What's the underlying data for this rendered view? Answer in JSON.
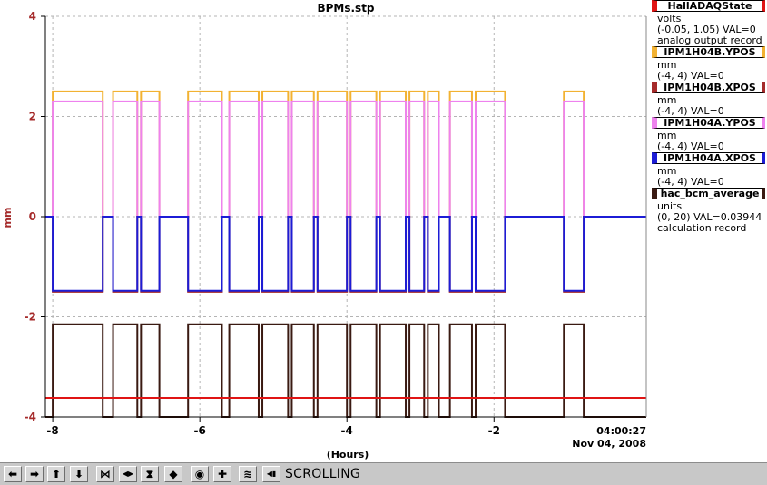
{
  "window": {
    "title": "BPMs.stp"
  },
  "chart_data": {
    "type": "line",
    "title": "BPMs.stp",
    "xlabel": "(Hours)",
    "ylabel": "mm",
    "xlim": [
      -8.1,
      0.07
    ],
    "ylim": [
      -4,
      4
    ],
    "x_ticks": [
      -8,
      -6,
      -4,
      -2
    ],
    "x_tick_labels": [
      "-8",
      "-6",
      "-4",
      "-2"
    ],
    "y_ticks": [
      -4,
      -2,
      0,
      2,
      4
    ],
    "y_tick_labels": [
      "-4",
      "-2",
      "0",
      "2",
      "4"
    ],
    "timestamp": [
      "04:00:27",
      "Nov 04, 2008"
    ],
    "grid": true,
    "legend_position": "right",
    "on_segments": [
      [
        -8.0,
        -7.32
      ],
      [
        -7.18,
        -6.85
      ],
      [
        -6.8,
        -6.55
      ],
      [
        -6.16,
        -5.7
      ],
      [
        -5.6,
        -5.2
      ],
      [
        -5.15,
        -4.8
      ],
      [
        -4.75,
        -4.45
      ],
      [
        -4.4,
        -4.0
      ],
      [
        -3.95,
        -3.6
      ],
      [
        -3.55,
        -3.2
      ],
      [
        -3.15,
        -2.95
      ],
      [
        -2.9,
        -2.75
      ],
      [
        -2.6,
        -2.3
      ],
      [
        -2.25,
        -1.85
      ],
      [
        -1.05,
        -0.78
      ]
    ],
    "series": [
      {
        "name": "IPM1H04B.YPOS",
        "color": "#f2b232",
        "on": 2.5,
        "off": 0
      },
      {
        "name": "IPM1H04A.YPOS",
        "color": "#ee82ee",
        "on": 2.3,
        "off": 0
      },
      {
        "name": "IPM1H04B.XPOS",
        "color": "#a52a2a",
        "on": -1.5,
        "off": 0
      },
      {
        "name": "IPM1H04A.XPOS",
        "color": "#1c1cd6",
        "on": -1.48,
        "off": 0
      },
      {
        "name": "hac_bcm_average",
        "color": "#3a1a12",
        "on": -2.15,
        "off": -4
      },
      {
        "name": "HallADAQState",
        "color": "#e01414",
        "constant": -3.62
      }
    ]
  },
  "legend": [
    {
      "name": "HallADAQState",
      "color": "#e01414",
      "lines": [
        "volts",
        "(-0.05, 1.05) VAL=0",
        "analog output record"
      ]
    },
    {
      "name": "IPM1H04B.YPOS",
      "color": "#f2b232",
      "lines": [
        "mm",
        "(-4, 4) VAL=0"
      ]
    },
    {
      "name": "IPM1H04B.XPOS",
      "color": "#a52a2a",
      "lines": [
        "mm",
        "(-4, 4) VAL=0"
      ]
    },
    {
      "name": "IPM1H04A.YPOS",
      "color": "#ee82ee",
      "lines": [
        "mm",
        "(-4, 4) VAL=0"
      ]
    },
    {
      "name": "IPM1H04A.XPOS",
      "color": "#1c1cd6",
      "lines": [
        "mm",
        "(-4, 4) VAL=0"
      ]
    },
    {
      "name": "hac_bcm_average",
      "color": "#3a1a12",
      "lines": [
        "units",
        "(0, 20) VAL=0.03944",
        "calculation record"
      ]
    }
  ],
  "toolbar": {
    "buttons": [
      {
        "name": "pan-left-icon",
        "glyph": "⬅"
      },
      {
        "name": "pan-right-icon",
        "glyph": "➡"
      },
      {
        "name": "pan-up-icon",
        "glyph": "⬆"
      },
      {
        "name": "pan-down-icon",
        "glyph": "⬇"
      },
      {
        "name": "zoom-in-x-icon",
        "glyph": "⋈"
      },
      {
        "name": "zoom-out-x-icon",
        "glyph": "◀▶"
      },
      {
        "name": "zoom-in-y-icon",
        "glyph": "⧗"
      },
      {
        "name": "zoom-out-y-icon",
        "glyph": "◆"
      },
      {
        "name": "auto-scale-icon",
        "glyph": "◉"
      },
      {
        "name": "add-icon",
        "glyph": "✚"
      },
      {
        "name": "stagger-icon",
        "glyph": "≋"
      },
      {
        "name": "undo-icon",
        "glyph": "◀▮"
      }
    ],
    "status": "SCROLLING"
  }
}
